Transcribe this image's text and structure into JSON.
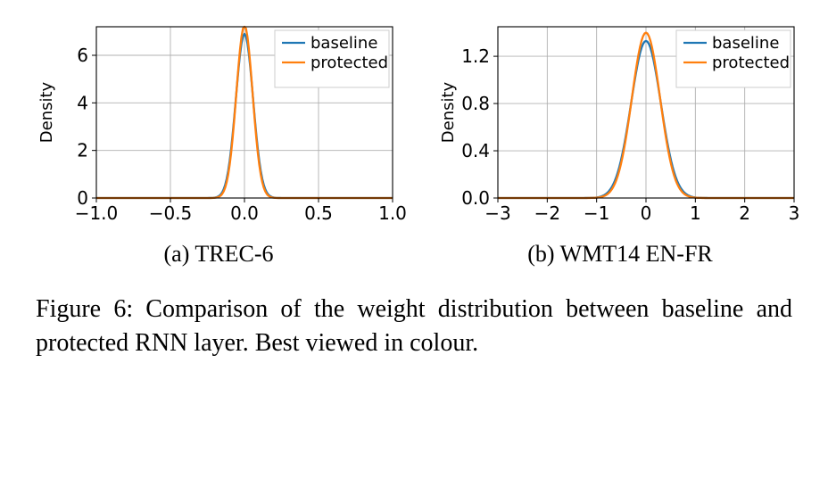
{
  "charts": [
    {
      "id": "trec6",
      "subcaption": "(a) TREC-6",
      "ylabel": "Density",
      "xlim": [
        -1.0,
        1.0
      ],
      "ylim": [
        0,
        7.2
      ],
      "xticks": [
        -1.0,
        -0.5,
        0.0,
        0.5,
        1.0
      ],
      "xtick_labels": [
        "−1.0",
        "−0.5",
        "0.0",
        "0.5",
        "1.0"
      ],
      "yticks": [
        0,
        2,
        4,
        6
      ],
      "ytick_labels": [
        "0",
        "2",
        "4",
        "6"
      ],
      "series": [
        {
          "name": "baseline",
          "color": "#1f77b4",
          "mu": 0.0,
          "sigma": 0.058,
          "peak": 6.9
        },
        {
          "name": "protected",
          "color": "#ff7f0e",
          "mu": 0.0,
          "sigma": 0.055,
          "peak": 7.25
        }
      ],
      "legend_pos": "top-right",
      "background_color": "#ffffff",
      "grid_color": "#b0b0b0",
      "axis_color": "#000000",
      "line_width": 2.3,
      "label_fontsize": 18,
      "tick_fontsize": 20,
      "legend_fontsize": 18
    },
    {
      "id": "wmt14",
      "subcaption": "(b) WMT14 EN-FR",
      "ylabel": "Density",
      "xlim": [
        -3,
        3
      ],
      "ylim": [
        0,
        1.45
      ],
      "xticks": [
        -3,
        -2,
        -1,
        0,
        1,
        2,
        3
      ],
      "xtick_labels": [
        "−3",
        "−2",
        "−1",
        "0",
        "1",
        "2",
        "3"
      ],
      "yticks": [
        0.0,
        0.4,
        0.8,
        1.2
      ],
      "ytick_labels": [
        "0.0",
        "0.4",
        "0.8",
        "1.2"
      ],
      "series": [
        {
          "name": "baseline",
          "color": "#1f77b4",
          "mu": 0.0,
          "sigma": 0.3,
          "peak": 1.33
        },
        {
          "name": "protected",
          "color": "#ff7f0e",
          "mu": 0.0,
          "sigma": 0.285,
          "peak": 1.4
        }
      ],
      "legend_pos": "top-right",
      "background_color": "#ffffff",
      "grid_color": "#b0b0b0",
      "axis_color": "#000000",
      "line_width": 2.3,
      "label_fontsize": 18,
      "tick_fontsize": 20,
      "legend_fontsize": 18
    }
  ],
  "caption": "Figure 6: Comparison of the weight distribution between baseline and protected RNN layer. Best viewed in colour.",
  "colors": {
    "baseline": "#1f77b4",
    "protected": "#ff7f0e",
    "grid": "#b0b0b0",
    "axis": "#000000",
    "text": "#000000",
    "background": "#ffffff"
  }
}
